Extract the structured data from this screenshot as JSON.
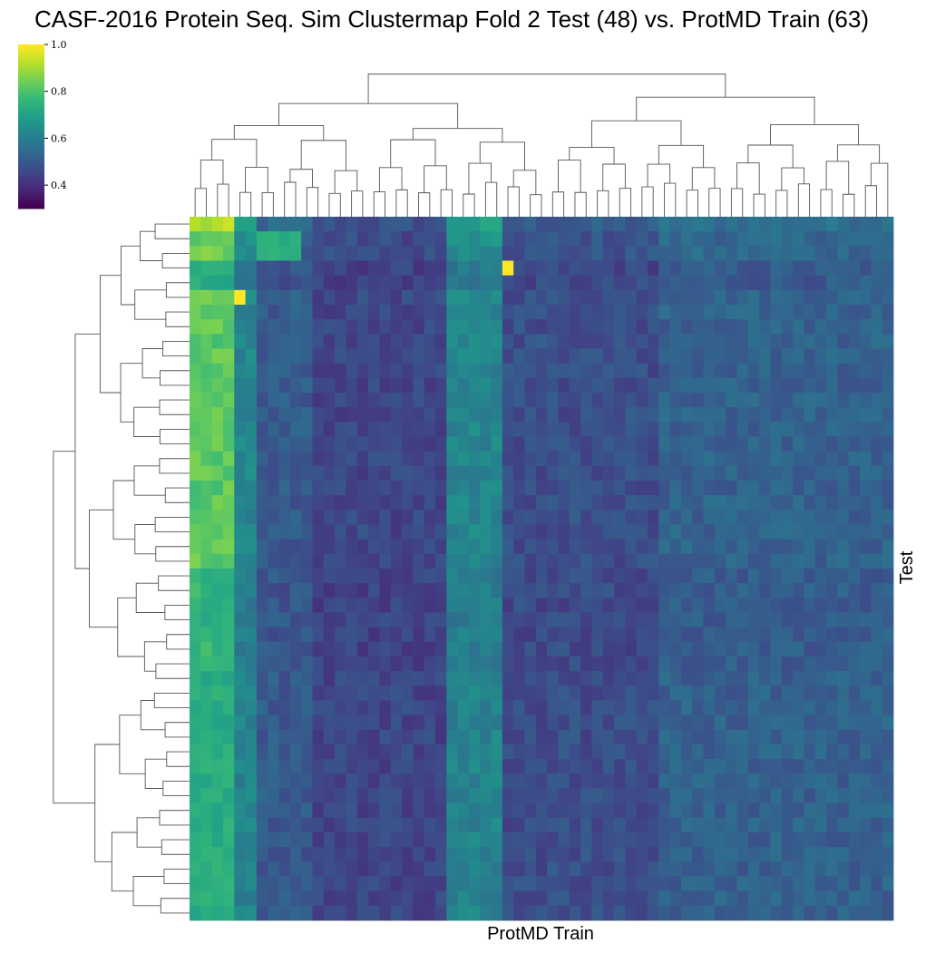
{
  "chart_data": {
    "type": "heatmap",
    "title": "CASF-2016 Protein Seq. Sim Clustermap Fold 2 Test (48) vs. ProtMD Train (63)",
    "xlabel": "ProtMD Train",
    "ylabel": "Test",
    "n_rows": 48,
    "n_cols": 63,
    "colormap": "viridis",
    "value_range": [
      0.3,
      1.0
    ],
    "colorbar_ticks": [
      "1.0",
      "0.8",
      "0.6",
      "0.4"
    ],
    "colorbar_tick_values": [
      1.0,
      0.8,
      0.6,
      0.4
    ],
    "row_dendrogram": true,
    "col_dendrogram": true,
    "row_groups": [
      {
        "rows": [
          0,
          0
        ],
        "level": "high",
        "note": "top row, highest values in first columns"
      },
      {
        "rows": [
          1,
          2
        ],
        "level": "mid"
      },
      {
        "rows": [
          3,
          4
        ],
        "level": "low",
        "peak": {
          "col": 28,
          "value": 1.0
        }
      },
      {
        "rows": [
          5,
          5
        ],
        "level": "mid",
        "peak": {
          "col": 4,
          "value": 1.0
        }
      },
      {
        "rows": [
          6,
          23
        ],
        "level": "mid-low"
      },
      {
        "rows": [
          24,
          30
        ],
        "level": "low"
      },
      {
        "rows": [
          31,
          47
        ],
        "level": "mid-low"
      }
    ]
  },
  "colors": {
    "viridis": [
      "#440154",
      "#482878",
      "#3e4989",
      "#31688e",
      "#26828e",
      "#1f9e89",
      "#35b779",
      "#6ece58",
      "#b5de2b",
      "#fde725"
    ],
    "dendrogram": "#555555"
  }
}
